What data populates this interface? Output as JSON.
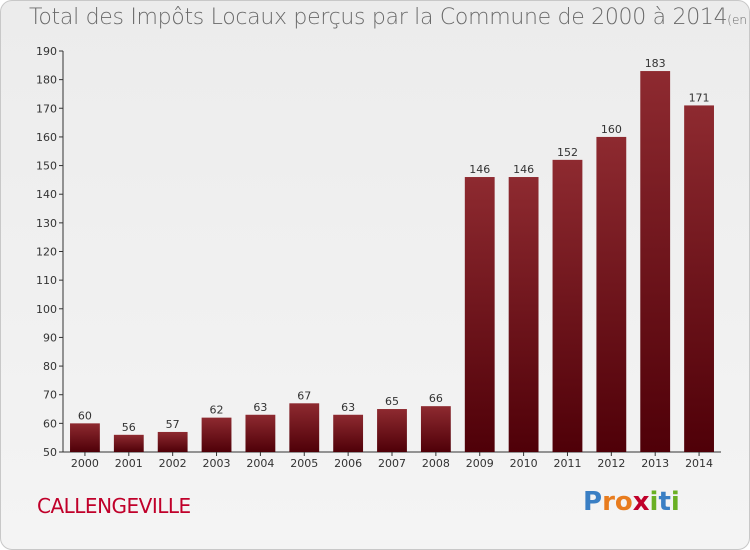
{
  "chart_data": {
    "type": "bar",
    "title": "Total des Impôts Locaux perçus par la Commune de 2000 à 2014",
    "unit": "(en milliers d'€)",
    "categories": [
      "2000",
      "2001",
      "2002",
      "2003",
      "2004",
      "2005",
      "2006",
      "2007",
      "2008",
      "2009",
      "2010",
      "2011",
      "2012",
      "2013",
      "2014"
    ],
    "values": [
      60,
      56,
      57,
      62,
      63,
      67,
      63,
      65,
      66,
      146,
      146,
      152,
      160,
      183,
      171
    ],
    "ylim": [
      50,
      190
    ],
    "yticks": [
      50,
      60,
      70,
      80,
      90,
      100,
      110,
      120,
      130,
      140,
      150,
      160,
      170,
      180,
      190
    ],
    "grid": false,
    "bar_color": "#7a1a1e"
  },
  "commune": "CALLENGEVILLE",
  "brand": {
    "letters": [
      "P",
      "r",
      "o",
      "x",
      "i",
      "t",
      "i"
    ],
    "colors": [
      "#3a7fc4",
      "#e87c1e",
      "#e87c1e",
      "#c0002a",
      "#6ab023",
      "#3a7fc4",
      "#6ab023"
    ]
  }
}
